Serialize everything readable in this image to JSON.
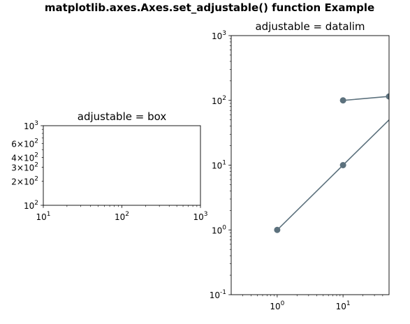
{
  "figure_title": "matplotlib.axes.Axes.set_adjustable() function Example",
  "chart_data": [
    {
      "type": "line",
      "title": "adjustable = box",
      "xscale": "log",
      "yscale": "log",
      "xlim": [
        10,
        1000
      ],
      "ylim": [
        100,
        1000
      ],
      "x_ticks": [
        {
          "value": 10,
          "label": "10^1"
        },
        {
          "value": 100,
          "label": "10^2"
        },
        {
          "value": 1000,
          "label": "10^3"
        }
      ],
      "y_ticks": [
        {
          "value": 100,
          "label": "10^2"
        },
        {
          "value": 200,
          "label": "2×10^2"
        },
        {
          "value": 300,
          "label": "3×10^2"
        },
        {
          "value": 400,
          "label": "4×10^2"
        },
        {
          "value": 600,
          "label": "6×10^2"
        },
        {
          "value": 1000,
          "label": "10^3"
        }
      ],
      "series": []
    },
    {
      "type": "line",
      "title": "adjustable = datalim",
      "xscale": "log",
      "yscale": "log",
      "xlim": [
        0.2,
        50
      ],
      "ylim": [
        0.1,
        1000
      ],
      "x_ticks": [
        {
          "value": 1,
          "label": "10^0"
        },
        {
          "value": 10,
          "label": "10^1"
        }
      ],
      "y_ticks": [
        {
          "value": 0.1,
          "label": "10^-1"
        },
        {
          "value": 1,
          "label": "10^0"
        },
        {
          "value": 10,
          "label": "10^1"
        },
        {
          "value": 100,
          "label": "10^2"
        },
        {
          "value": 1000,
          "label": "10^3"
        }
      ],
      "series": [
        {
          "color": "#5c717d",
          "marker": "circle",
          "points": [
            [
              1,
              1
            ],
            [
              10,
              10
            ],
            [
              100,
              100
            ]
          ]
        },
        {
          "color": "#5c717d",
          "marker": "circle",
          "points": [
            [
              10,
              100
            ],
            [
              50,
              115
            ]
          ]
        }
      ]
    }
  ]
}
